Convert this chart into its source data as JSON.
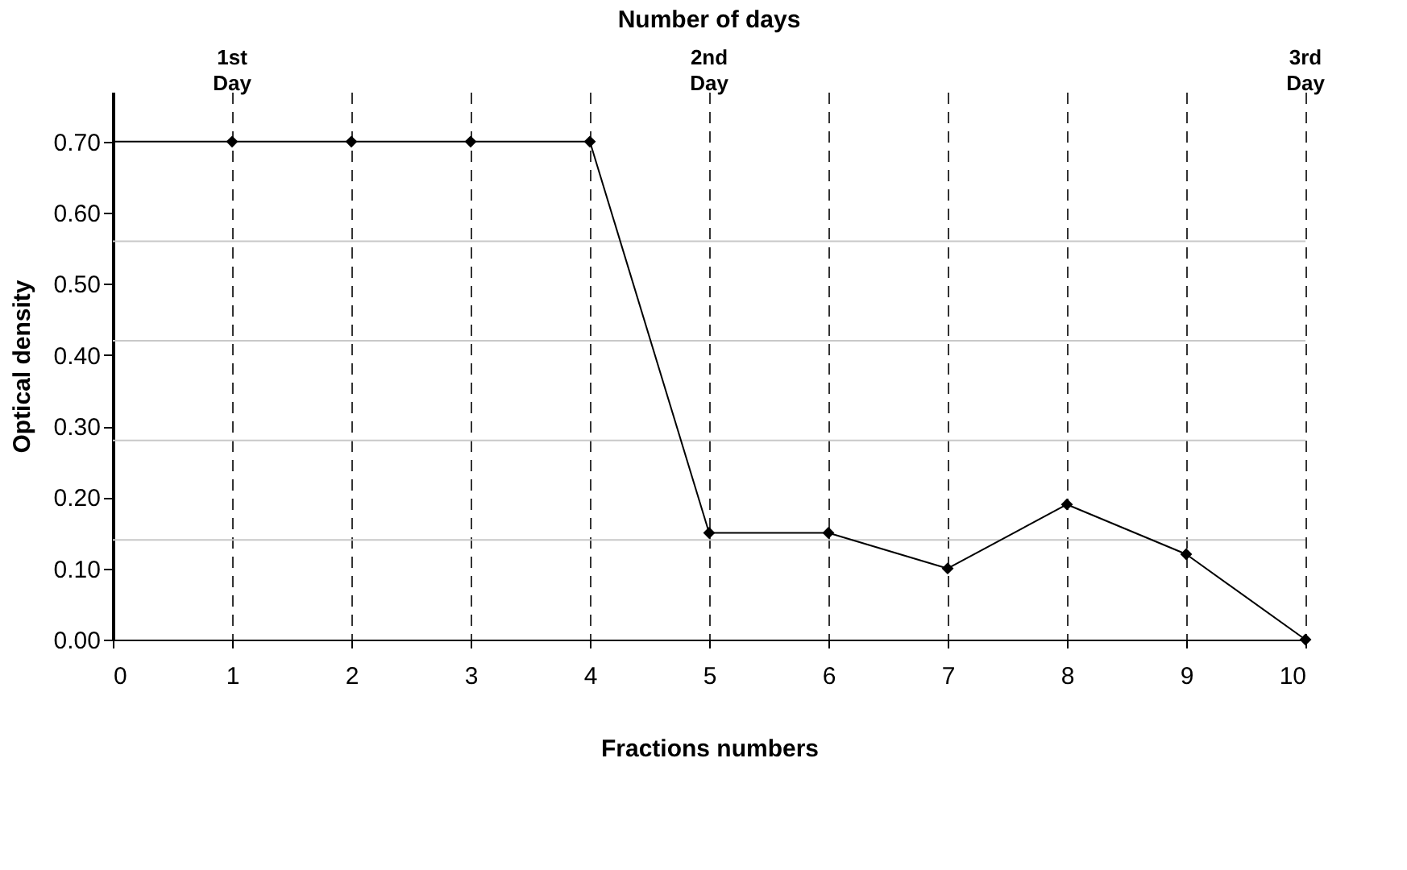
{
  "chart_data": {
    "type": "line",
    "xlabel": "Fractions numbers",
    "ylabel": "Optical density",
    "x2label": "Number of days",
    "series": [
      {
        "color": "#000000",
        "x": [
          0,
          1
        ],
        "values": [
          0.7,
          0.7
        ]
      },
      {
        "color": "#000000",
        "marker": "diamond",
        "x": [
          1,
          2,
          3,
          4,
          5,
          6,
          7,
          8,
          9,
          10
        ],
        "values": [
          0.7,
          0.7,
          0.7,
          0.7,
          0.15,
          0.15,
          0.1,
          0.19,
          0.12,
          0.0
        ]
      }
    ],
    "xlim": [
      0,
      10
    ],
    "xticks": [
      0,
      1,
      2,
      3,
      4,
      5,
      6,
      7,
      8,
      9,
      10
    ],
    "annotations": [
      {
        "text": "1st Day",
        "x": 1
      },
      {
        "text": "2nd Day",
        "x": 5
      },
      {
        "text": "3rd Day",
        "x": 10
      }
    ],
    "ylim": [
      0,
      0.77
    ],
    "yticks": [
      {
        "value": 0,
        "label": "0.00"
      },
      {
        "value": 0.1,
        "label": "0.10"
      },
      {
        "value": 0.2,
        "label": "0.20"
      },
      {
        "value": 0.3,
        "label": "0.30"
      },
      {
        "value": 0.4,
        "label": "0.40"
      },
      {
        "value": 0.5,
        "label": "0.50"
      },
      {
        "value": 0.6,
        "label": "0.60"
      },
      {
        "value": 0.7,
        "label": "0.70"
      }
    ],
    "ref_lines": [
      {
        "axis": "y",
        "value": 0.14,
        "color": "#c8c8c8"
      },
      {
        "axis": "y",
        "value": 0.28,
        "color": "#c8c8c8"
      },
      {
        "axis": "y",
        "value": 0.42,
        "color": "#c8c8c8"
      },
      {
        "axis": "y",
        "value": 0.56,
        "color": "#c8c8c8"
      }
    ],
    "grid": "x",
    "line_style": "solid"
  }
}
